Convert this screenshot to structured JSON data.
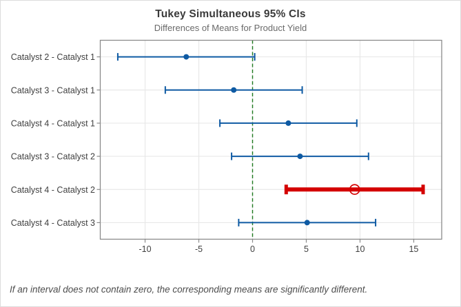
{
  "chart_data": {
    "type": "interval",
    "title": "Tukey Simultaneous 95% CIs",
    "subtitle": "Differences of Means for Product Yield",
    "footnote": "If an interval does not contain zero, the corresponding means are significantly different.",
    "xlim": [
      -14.17,
      17.6
    ],
    "xticks": [
      -10,
      -5,
      0,
      5,
      10,
      15
    ],
    "reference_line_x": 0,
    "grid": true,
    "legend": "none",
    "rows": [
      {
        "label": "Catalyst 2 - Catalyst 1",
        "lower": -12.54,
        "center": -6.17,
        "upper": 0.2,
        "significant": false
      },
      {
        "label": "Catalyst 3 - Catalyst 1",
        "lower": -8.12,
        "center": -1.75,
        "upper": 4.62,
        "significant": false
      },
      {
        "label": "Catalyst 4 - Catalyst 1",
        "lower": -3.04,
        "center": 3.33,
        "upper": 9.7,
        "significant": false
      },
      {
        "label": "Catalyst 3 - Catalyst 2",
        "lower": -1.95,
        "center": 4.42,
        "upper": 10.79,
        "significant": false
      },
      {
        "label": "Catalyst 4 - Catalyst 2",
        "lower": 3.13,
        "center": 9.5,
        "upper": 15.87,
        "significant": true
      },
      {
        "label": "Catalyst 4 - Catalyst 3",
        "lower": -1.29,
        "center": 5.08,
        "upper": 11.45,
        "significant": false
      }
    ],
    "colors": {
      "interval": "#0e5aa3",
      "significant": "#d40000",
      "reference_line": "#1f7a1f",
      "gridline": "#e8e8e8",
      "frame": "#8a8a8a",
      "axis_text": "#3f3f3f"
    }
  }
}
